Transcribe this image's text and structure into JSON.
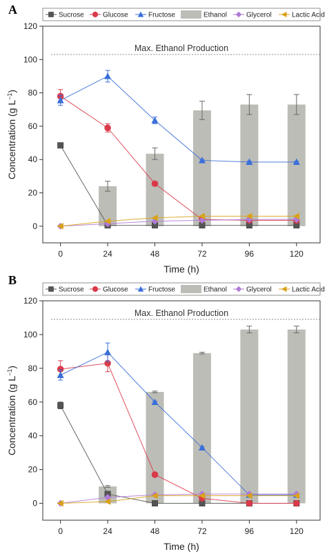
{
  "chart_data": [
    {
      "panel": "A",
      "type": "line",
      "x": [
        0,
        24,
        48,
        72,
        96,
        120
      ],
      "xlabel": "Time (h)",
      "ylabel": "Concentration (g L",
      "ylabel_sup": "−1",
      "ylabel_tail": ")",
      "xlim": [
        -9,
        132
      ],
      "ylim": [
        -10,
        120
      ],
      "yticks": [
        0,
        20,
        40,
        60,
        80,
        100,
        120
      ],
      "xticks": [
        0,
        24,
        48,
        72,
        96,
        120
      ],
      "legend_position": "top",
      "annotation": {
        "text": "Max. Ethanol Production",
        "y": 103
      },
      "series": [
        {
          "name": "Sucrose",
          "kind": "line",
          "marker": "square",
          "color": "#555555",
          "values": [
            48.5,
            0.5,
            0.5,
            0.5,
            0.5,
            0.5
          ],
          "errors": [
            1.5,
            0,
            0,
            0,
            0,
            0
          ]
        },
        {
          "name": "Glucose",
          "kind": "line",
          "marker": "circle",
          "color": "#d93a4a",
          "values": [
            78,
            59,
            25.5,
            4,
            3.5,
            3.5
          ],
          "errors": [
            4,
            2.5,
            0.5,
            0,
            0,
            0
          ]
        },
        {
          "name": "Fructose",
          "kind": "line",
          "marker": "triangle",
          "color": "#3a6fd9",
          "values": [
            75.5,
            90,
            63.5,
            39.5,
            38.5,
            38.5
          ],
          "errors": [
            3,
            3.5,
            2,
            0.5,
            0.5,
            0.5
          ]
        },
        {
          "name": "Ethanol",
          "kind": "bar",
          "color": "#bdbdb7",
          "values": [
            0,
            24,
            43.5,
            69.5,
            73,
            73
          ],
          "errors": [
            0,
            3,
            3.5,
            5.5,
            6,
            6
          ]
        },
        {
          "name": "Glycerol",
          "kind": "line",
          "marker": "diamond",
          "color": "#b07ad6",
          "values": [
            0,
            1.5,
            3,
            3.5,
            4,
            4
          ],
          "errors": [
            0,
            0,
            0,
            0,
            0,
            0
          ]
        },
        {
          "name": "Lactic Acid",
          "kind": "line",
          "marker": "tri-left",
          "color": "#d9a21a",
          "values": [
            0,
            3,
            5,
            6,
            6,
            6
          ],
          "errors": [
            0,
            0,
            0,
            0,
            0,
            0
          ]
        }
      ]
    },
    {
      "panel": "B",
      "type": "line",
      "x": [
        0,
        24,
        48,
        72,
        96,
        120
      ],
      "xlabel": "Time (h)",
      "ylabel": "Concentration (g L",
      "ylabel_sup": "−1",
      "ylabel_tail": ")",
      "xlim": [
        -9,
        132
      ],
      "ylim": [
        -10,
        120
      ],
      "yticks": [
        0,
        20,
        40,
        60,
        80,
        100,
        120
      ],
      "xticks": [
        0,
        24,
        48,
        72,
        96,
        120
      ],
      "legend_position": "top",
      "annotation": {
        "text": "Max. Ethanol Production",
        "y": 109
      },
      "series": [
        {
          "name": "Sucrose",
          "kind": "line",
          "marker": "square",
          "color": "#555555",
          "values": [
            58,
            5.5,
            0,
            0,
            0,
            0
          ],
          "errors": [
            2,
            0,
            0,
            0,
            0,
            0
          ]
        },
        {
          "name": "Glucose",
          "kind": "line",
          "marker": "circle",
          "color": "#d93a4a",
          "values": [
            79.5,
            83,
            17,
            3,
            0,
            0
          ],
          "errors": [
            5,
            5,
            0.5,
            0,
            0,
            0
          ]
        },
        {
          "name": "Fructose",
          "kind": "line",
          "marker": "triangle",
          "color": "#3a6fd9",
          "values": [
            76,
            89.5,
            60,
            33,
            5,
            5
          ],
          "errors": [
            3,
            5.5,
            0.5,
            0.5,
            0,
            0
          ]
        },
        {
          "name": "Ethanol",
          "kind": "bar",
          "color": "#bdbdb7",
          "values": [
            0,
            10,
            66,
            89,
            103,
            103
          ],
          "errors": [
            0,
            0.5,
            0.5,
            0.5,
            2,
            2
          ]
        },
        {
          "name": "Glycerol",
          "kind": "line",
          "marker": "diamond",
          "color": "#b07ad6",
          "values": [
            0,
            3.5,
            5,
            5.5,
            5.5,
            5.5
          ],
          "errors": [
            0,
            0,
            0,
            0,
            0,
            0
          ]
        },
        {
          "name": "Lactic Acid",
          "kind": "line",
          "marker": "tri-left",
          "color": "#d9a21a",
          "values": [
            0,
            1,
            4.5,
            4.5,
            4.5,
            4.5
          ],
          "errors": [
            0,
            0,
            0,
            0,
            0,
            0
          ]
        }
      ]
    }
  ]
}
